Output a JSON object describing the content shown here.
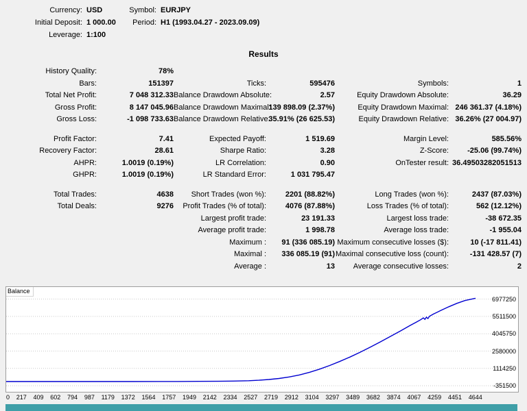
{
  "colors": {
    "page_bg": "#f0f0f0"
  },
  "header": {
    "currency_label": "Currency:",
    "currency_value": "USD",
    "symbol_label": "Symbol:",
    "symbol_value": "EURJPY",
    "initial_deposit_label": "Initial Deposit:",
    "initial_deposit_value": "1 000.00",
    "period_label": "Period:",
    "period_value": "H1 (1993.04.27 - 2023.09.09)",
    "leverage_label": "Leverage:",
    "leverage_value": "1:100"
  },
  "results_title": "Results",
  "stats": {
    "rows": [
      [
        {
          "label": "History Quality:",
          "value": "78%"
        },
        null,
        null
      ],
      [
        {
          "label": "Bars:",
          "value": "151397"
        },
        {
          "label": "Ticks:",
          "value": "595476"
        },
        {
          "label": "Symbols:",
          "value": "1"
        }
      ],
      [
        {
          "label": "Total Net Profit:",
          "value": "7 048 312.33"
        },
        {
          "label": "Balance Drawdown Absolute:",
          "value": "2.57"
        },
        {
          "label": "Equity Drawdown Absolute:",
          "value": "36.29"
        }
      ],
      [
        {
          "label": "Gross Profit:",
          "value": "8 147 045.96"
        },
        {
          "label": "Balance Drawdown Maximal:",
          "value": "139 898.09 (2.37%)"
        },
        {
          "label": "Equity Drawdown Maximal:",
          "value": "246 361.37 (4.18%)"
        }
      ],
      [
        {
          "label": "Gross Loss:",
          "value": "-1 098 733.63"
        },
        {
          "label": "Balance Drawdown Relative:",
          "value": "35.91% (26 625.53)"
        },
        {
          "label": "Equity Drawdown Relative:",
          "value": "36.26% (27 004.97)"
        }
      ],
      "spacer",
      [
        {
          "label": "Profit Factor:",
          "value": "7.41"
        },
        {
          "label": "Expected Payoff:",
          "value": "1 519.69"
        },
        {
          "label": "Margin Level:",
          "value": "585.56%"
        }
      ],
      [
        {
          "label": "Recovery Factor:",
          "value": "28.61"
        },
        {
          "label": "Sharpe Ratio:",
          "value": "3.28"
        },
        {
          "label": "Z-Score:",
          "value": "-25.06 (99.74%)"
        }
      ],
      [
        {
          "label": "AHPR:",
          "value": "1.0019 (0.19%)"
        },
        {
          "label": "LR Correlation:",
          "value": "0.90"
        },
        {
          "label": "OnTester result:",
          "value": "36.49503282051513"
        }
      ],
      [
        {
          "label": "GHPR:",
          "value": "1.0019 (0.19%)"
        },
        {
          "label": "LR Standard Error:",
          "value": "1 031 795.47"
        },
        null
      ],
      "spacer",
      [
        {
          "label": "Total Trades:",
          "value": "4638"
        },
        {
          "label": "Short Trades (won %):",
          "value": "2201 (88.82%)"
        },
        {
          "label": "Long Trades (won %):",
          "value": "2437 (87.03%)"
        }
      ],
      [
        {
          "label": "Total Deals:",
          "value": "9276"
        },
        {
          "label": "Profit Trades (% of total):",
          "value": "4076 (87.88%)"
        },
        {
          "label": "Loss Trades (% of total):",
          "value": "562 (12.12%)"
        }
      ],
      [
        null,
        {
          "label": "Largest profit trade:",
          "value": "23 191.33"
        },
        {
          "label": "Largest loss trade:",
          "value": "-38 672.35"
        }
      ],
      [
        null,
        {
          "label": "Average profit trade:",
          "value": "1 998.78"
        },
        {
          "label": "Average loss trade:",
          "value": "-1 955.04"
        }
      ],
      [
        null,
        {
          "label": "Maximum :",
          "value": "91 (336 085.19)"
        },
        {
          "label": "Maximum consecutive losses ($):",
          "value": "10 (-17 811.41)"
        }
      ],
      [
        null,
        {
          "label": "Maximal :",
          "value": "336 085.19 (91)"
        },
        {
          "label": "Maximal consecutive loss (count):",
          "value": "-131 428.57 (7)"
        }
      ],
      [
        null,
        {
          "label": "Average :",
          "value": "13"
        },
        {
          "label": "Average consecutive losses:",
          "value": "2"
        }
      ]
    ]
  },
  "chart_data": {
    "type": "line",
    "series_label": "Balance",
    "line_color": "#0000d0",
    "grid_color": "#c9c9c9",
    "strip_color": "#3f9fa8",
    "grid": "horizontal-dotted",
    "legend_position": "top-left",
    "xlim": [
      0,
      4644
    ],
    "ylim": [
      -750000,
      8000000
    ],
    "x_ticks": [
      "0",
      "217",
      "409",
      "602",
      "794",
      "987",
      "1179",
      "1372",
      "1564",
      "1757",
      "1949",
      "2142",
      "2334",
      "2527",
      "2719",
      "2912",
      "3104",
      "3297",
      "3489",
      "3682",
      "3874",
      "4067",
      "4259",
      "4451",
      "4644"
    ],
    "y_ticks": [
      6977250,
      5511500,
      4045750,
      2580000,
      1114250,
      -351500
    ],
    "points": [
      [
        0,
        1000
      ],
      [
        250,
        1300
      ],
      [
        500,
        1800
      ],
      [
        750,
        2400
      ],
      [
        1000,
        3300
      ],
      [
        1250,
        4900
      ],
      [
        1500,
        7600
      ],
      [
        1700,
        11500
      ],
      [
        1900,
        18000
      ],
      [
        2100,
        29000
      ],
      [
        2250,
        45000
      ],
      [
        2400,
        75000
      ],
      [
        2500,
        115000
      ],
      [
        2600,
        175000
      ],
      [
        2700,
        265000
      ],
      [
        2800,
        390000
      ],
      [
        2900,
        560000
      ],
      [
        3000,
        780000
      ],
      [
        3100,
        1050000
      ],
      [
        3200,
        1360000
      ],
      [
        3300,
        1700000
      ],
      [
        3400,
        2070000
      ],
      [
        3500,
        2470000
      ],
      [
        3600,
        2900000
      ],
      [
        3700,
        3350000
      ],
      [
        3800,
        3810000
      ],
      [
        3900,
        4280000
      ],
      [
        4000,
        4760000
      ],
      [
        4060,
        5040000
      ],
      [
        4100,
        5230000
      ],
      [
        4128,
        5390000
      ],
      [
        4143,
        5260000
      ],
      [
        4158,
        5450000
      ],
      [
        4173,
        5330000
      ],
      [
        4188,
        5520000
      ],
      [
        4230,
        5720000
      ],
      [
        4300,
        6010000
      ],
      [
        4380,
        6330000
      ],
      [
        4460,
        6620000
      ],
      [
        4540,
        6860000
      ],
      [
        4644,
        7049312
      ]
    ]
  }
}
